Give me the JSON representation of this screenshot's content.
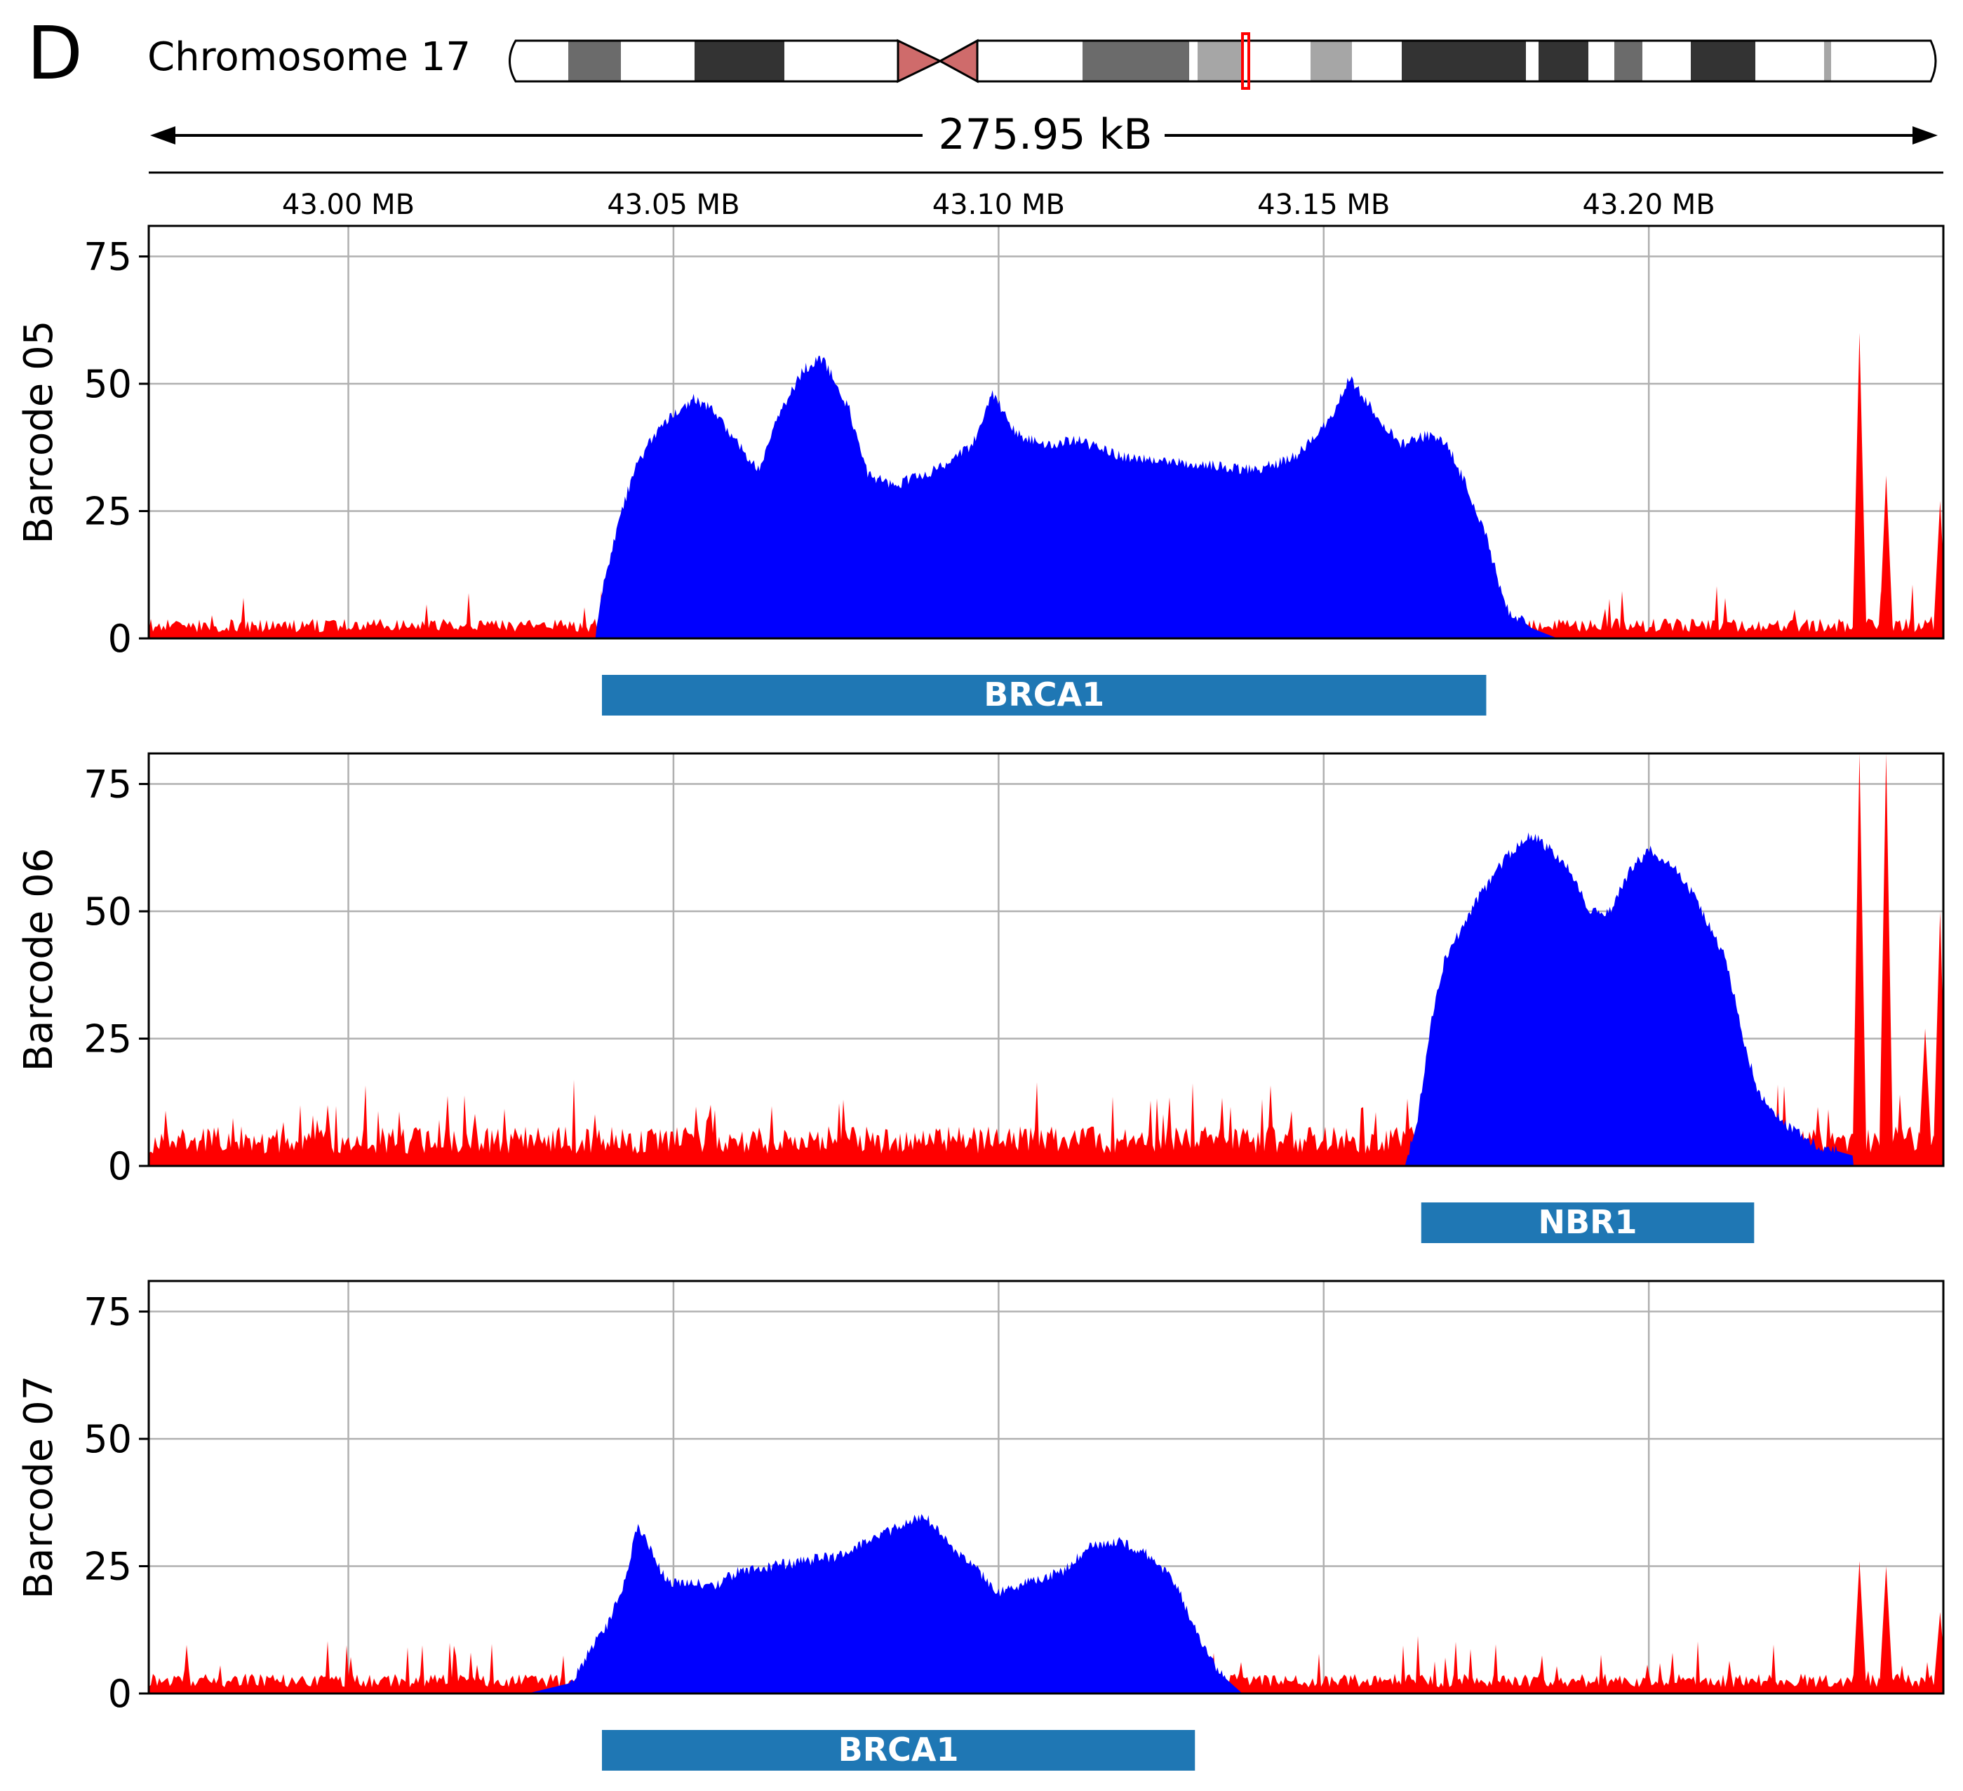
{
  "panel_label": "D",
  "ideogram": {
    "label": "Chromosome 17",
    "span_label": "275.95 kB",
    "colors": {
      "gneg": "#ffffff",
      "gpos25": "#a6a6a6",
      "gpos50": "#6b6b6b",
      "gpos75": "#333333",
      "acen": "#cf6b6b",
      "highlight": "#ff0000"
    }
  },
  "colors": {
    "reads_off_target": "#ff0000",
    "reads_on_target": "#0000ff",
    "gene_bar": "#1f77b4",
    "gene_text": "#ffffff",
    "grid": "#b0b0b0"
  },
  "chart_data": {
    "type": "area",
    "x_unit": "MB",
    "xlim": [
      42.9693,
      43.2453
    ],
    "ylim": [
      0,
      81
    ],
    "xticks": [
      43.0,
      43.05,
      43.1,
      43.15,
      43.2
    ],
    "xtick_labels": [
      "43.00 MB",
      "43.05 MB",
      "43.10 MB",
      "43.15 MB",
      "43.20 MB"
    ],
    "yticks": [
      0,
      25,
      50,
      75
    ],
    "ytick_labels": [
      "0",
      "25",
      "50",
      "75"
    ],
    "grid": true,
    "panels": [
      {
        "ylabel": "Barcode 05",
        "gene": {
          "name": "BRCA1",
          "start": 43.039,
          "end": 43.175
        },
        "on_target": {
          "x": [
            43.038,
            43.0395,
            43.042,
            43.044,
            43.047,
            43.05,
            43.053,
            43.056,
            43.06,
            43.063,
            43.066,
            43.07,
            43.073,
            43.077,
            43.08,
            43.084,
            43.088,
            43.092,
            43.096,
            43.099,
            43.103,
            43.107,
            43.112,
            43.118,
            43.125,
            43.132,
            43.14,
            43.146,
            43.151,
            43.154,
            43.158,
            43.162,
            43.166,
            43.169,
            43.172,
            43.175,
            43.178,
            43.182,
            43.186
          ],
          "y": [
            1,
            12,
            25,
            33,
            40,
            44,
            47,
            45,
            38,
            33,
            43,
            53,
            55,
            45,
            32,
            30,
            32,
            34,
            38,
            48,
            40,
            38,
            39,
            36,
            35,
            34,
            33,
            36,
            43,
            51,
            44,
            38,
            40,
            38,
            30,
            20,
            6,
            2,
            0
          ]
        },
        "off_target_spikes": [
          {
            "x": 43.2324,
            "y": 60
          },
          {
            "x": 43.2365,
            "y": 32
          },
          {
            "x": 43.2448,
            "y": 27
          }
        ]
      },
      {
        "ylabel": "Barcode 06",
        "gene": {
          "name": "NBR1",
          "start": 43.165,
          "end": 43.2162
        },
        "on_target": {
          "x": [
            43.1625,
            43.1645,
            43.1665,
            43.1685,
            43.171,
            43.1735,
            43.176,
            43.179,
            43.182,
            43.185,
            43.188,
            43.191,
            43.194,
            43.197,
            43.2,
            43.203,
            43.206,
            43.209,
            43.212,
            43.2145,
            43.217,
            43.221,
            43.226,
            43.2315
          ],
          "y": [
            0,
            10,
            28,
            40,
            46,
            52,
            57,
            62,
            65,
            62,
            58,
            50,
            50,
            58,
            62,
            60,
            55,
            48,
            40,
            25,
            14,
            8,
            4,
            2
          ]
        },
        "off_target_spikes": [
          {
            "x": 43.2324,
            "y": 81
          },
          {
            "x": 43.2365,
            "y": 81
          },
          {
            "x": 43.2425,
            "y": 27
          },
          {
            "x": 43.2448,
            "y": 50
          }
        ]
      },
      {
        "ylabel": "Barcode 07",
        "gene": {
          "name": "BRCA1",
          "start": 43.039,
          "end": 43.1302
        },
        "on_target": {
          "x": [
            43.0275,
            43.034,
            43.037,
            43.04,
            43.0425,
            43.0445,
            43.0465,
            43.049,
            43.052,
            43.056,
            43.06,
            43.065,
            43.07,
            43.075,
            43.08,
            43.085,
            43.0885,
            43.092,
            43.096,
            43.1,
            43.105,
            43.11,
            43.114,
            43.118,
            43.122,
            43.126,
            43.1285,
            43.131,
            43.134,
            43.1375
          ],
          "y": [
            0,
            2,
            8,
            14,
            22,
            33,
            28,
            22,
            22,
            21,
            24,
            25,
            26,
            27,
            30,
            33,
            35,
            30,
            25,
            20,
            22,
            24,
            29,
            30,
            28,
            24,
            18,
            10,
            4,
            0
          ]
        },
        "off_target_spikes": [
          {
            "x": 43.2324,
            "y": 26
          },
          {
            "x": 43.2365,
            "y": 25
          },
          {
            "x": 43.2448,
            "y": 16
          }
        ]
      }
    ]
  }
}
